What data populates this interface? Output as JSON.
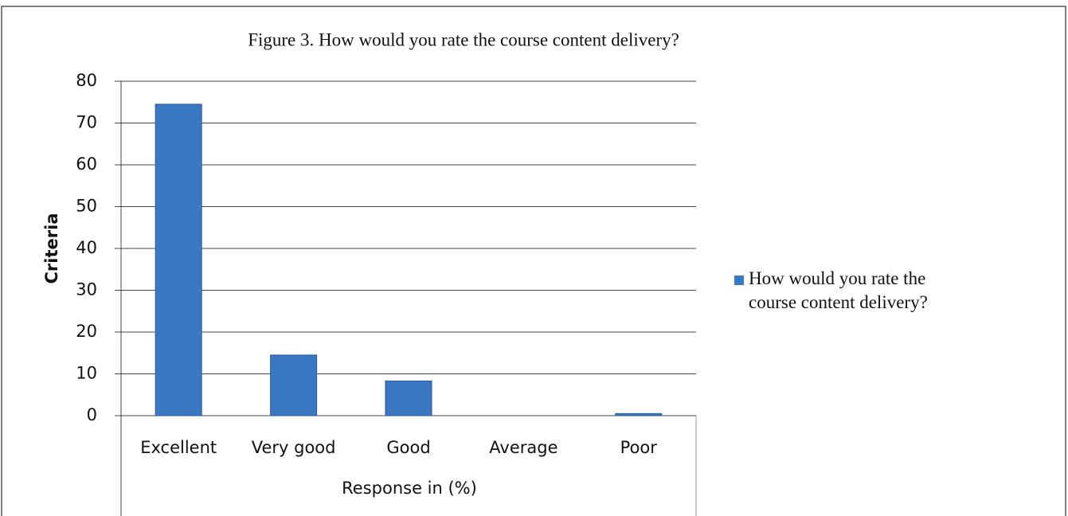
{
  "chart_data": {
    "type": "bar",
    "title": "Figure 3. How would you rate the course content delivery?",
    "x_label": "Response in (%)",
    "y_label": "Criteria",
    "categories": [
      "Excellent",
      "Very good",
      "Good",
      "Average",
      "Poor"
    ],
    "series": [
      {
        "name": "How would you rate the course content delivery?",
        "color": "#3a78c4",
        "values": [
          74.5,
          14.5,
          8.3,
          0,
          0.5
        ]
      }
    ],
    "ylim": [
      0,
      80
    ],
    "yticks": [
      0,
      10,
      20,
      30,
      40,
      50,
      60,
      70,
      80
    ],
    "grid": true,
    "legend": "right"
  }
}
